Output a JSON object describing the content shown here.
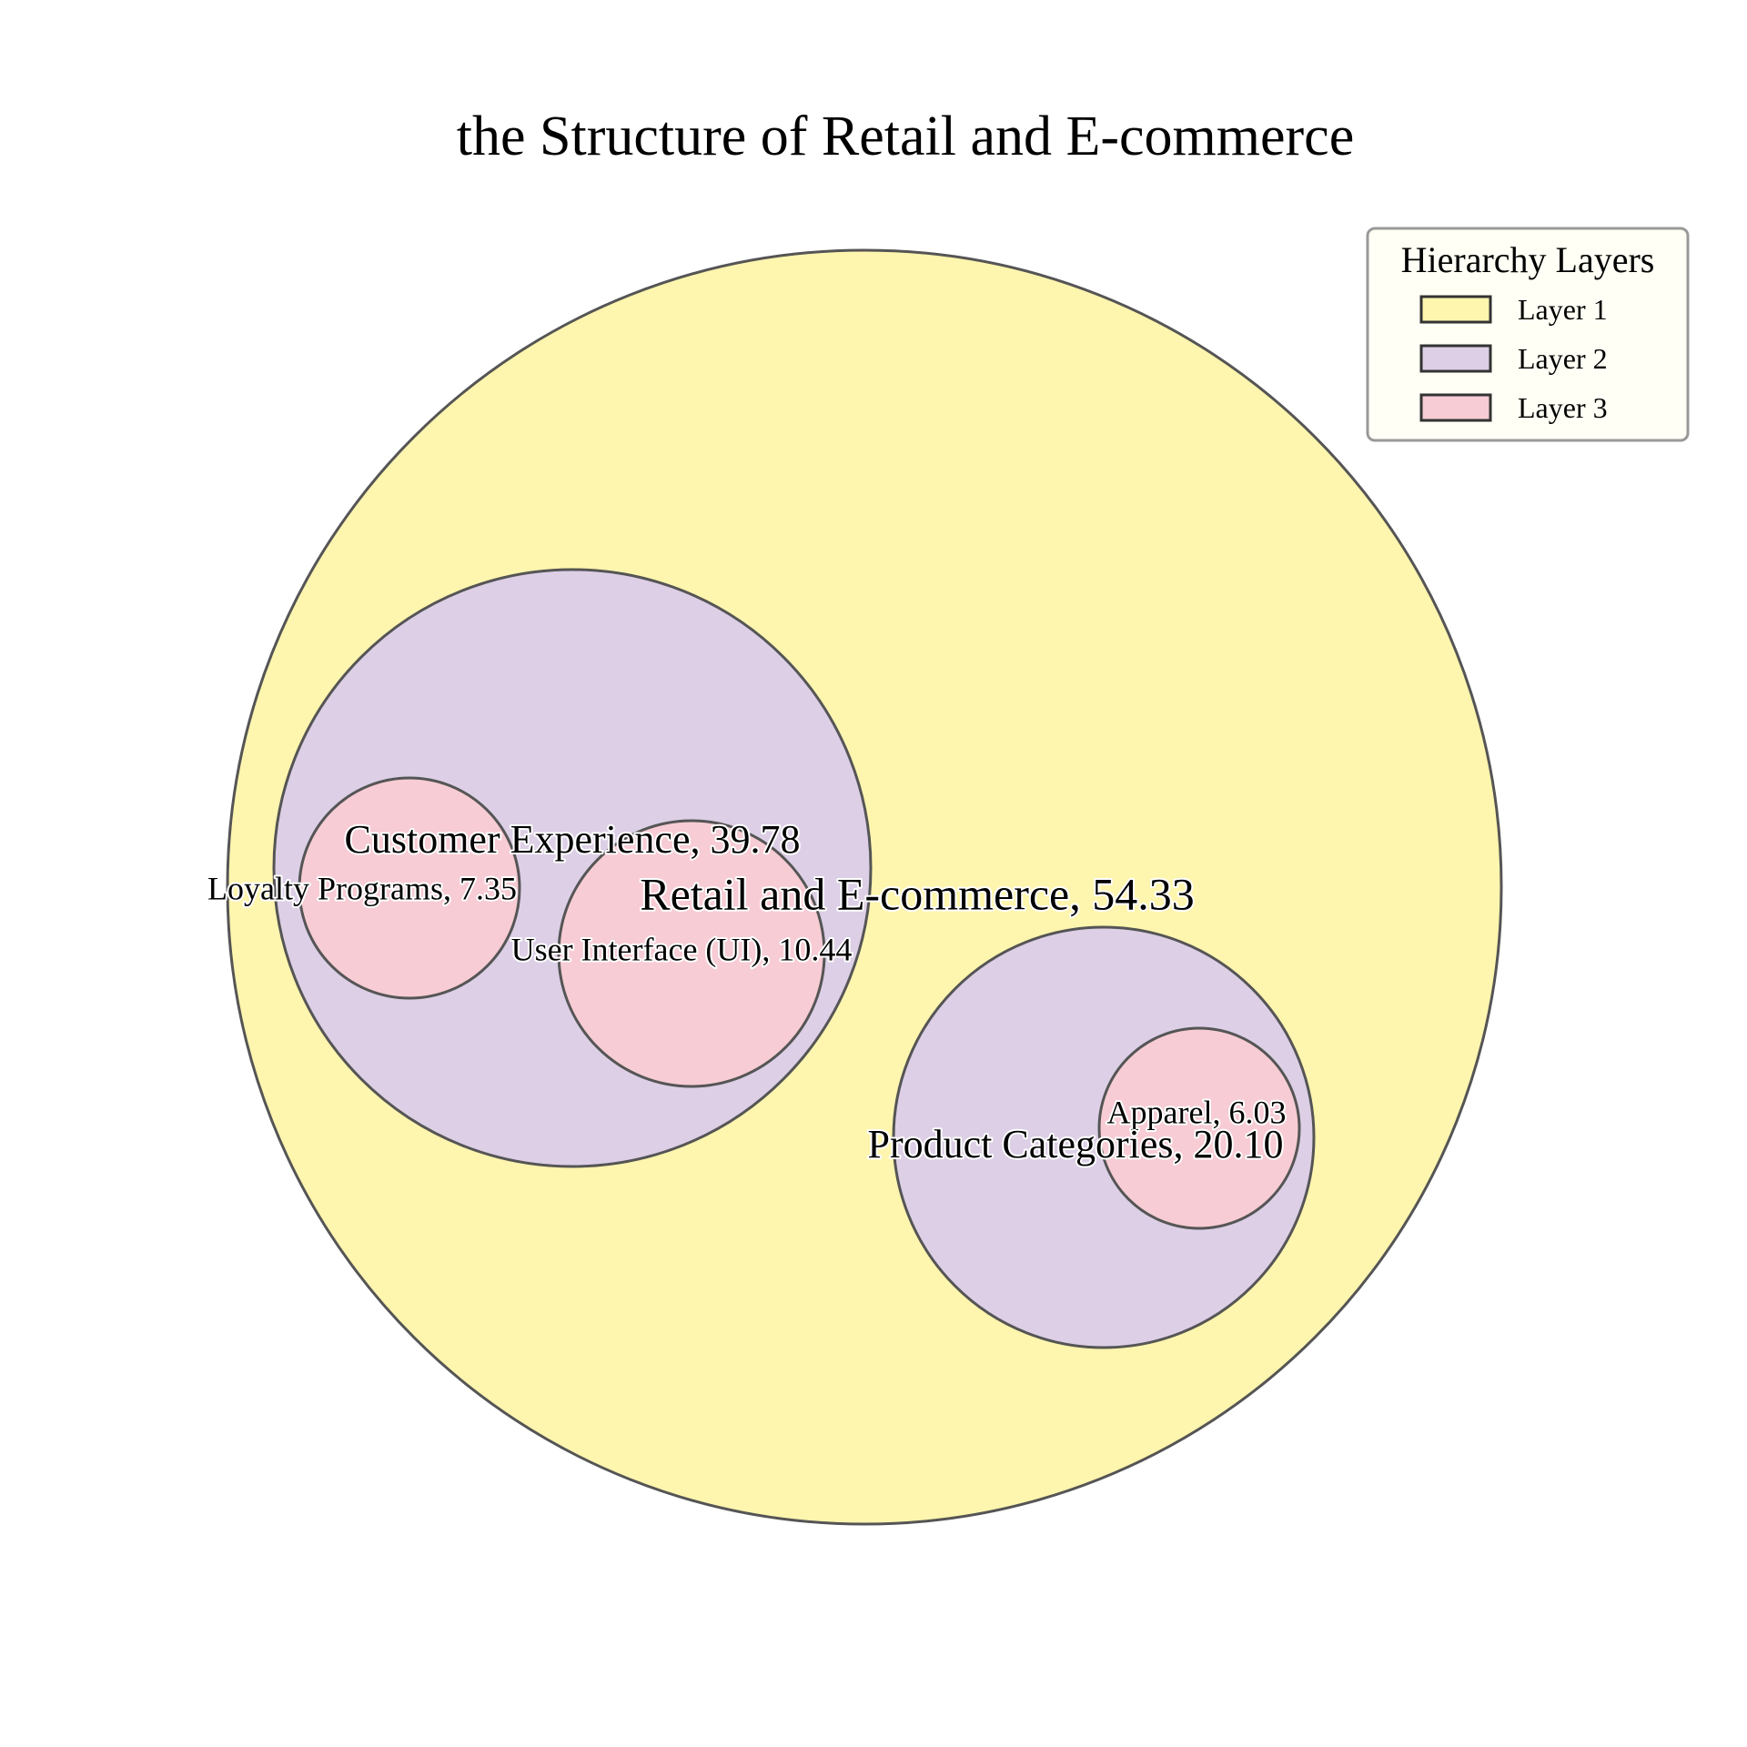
{
  "chart_data": {
    "type": "circle_packing",
    "title": "the Structure of Retail and E-commerce",
    "legend": {
      "title": "Hierarchy Layers",
      "placement": "top-right",
      "entries": [
        {
          "label": "Layer 1",
          "color": "#fef5ae"
        },
        {
          "label": "Layer 2",
          "color": "#dccfe6"
        },
        {
          "label": "Layer 3",
          "color": "#f7ccd4"
        }
      ]
    },
    "nodes": [
      {
        "id": "root",
        "name": "Retail and E-commerce",
        "value": 54.33,
        "label": "Retail and E-commerce, 54.33",
        "layer": 1,
        "parent": null
      },
      {
        "id": "cx",
        "name": "Customer Experience",
        "value": 39.78,
        "label": "Customer Experience, 39.78",
        "layer": 2,
        "parent": "root"
      },
      {
        "id": "pc",
        "name": "Product Categories",
        "value": 20.1,
        "label": "Product Categories, 20.10",
        "layer": 2,
        "parent": "root"
      },
      {
        "id": "lp",
        "name": "Loyalty Programs",
        "value": 7.35,
        "label": "Loyalty Programs, 7.35",
        "layer": 3,
        "parent": "cx"
      },
      {
        "id": "ui",
        "name": "User Interface (UI)",
        "value": 10.44,
        "label": "User Interface (UI), 10.44",
        "layer": 3,
        "parent": "cx"
      },
      {
        "id": "ap",
        "name": "Apparel",
        "value": 6.03,
        "label": "Apparel, 6.03",
        "layer": 3,
        "parent": "pc"
      }
    ]
  }
}
